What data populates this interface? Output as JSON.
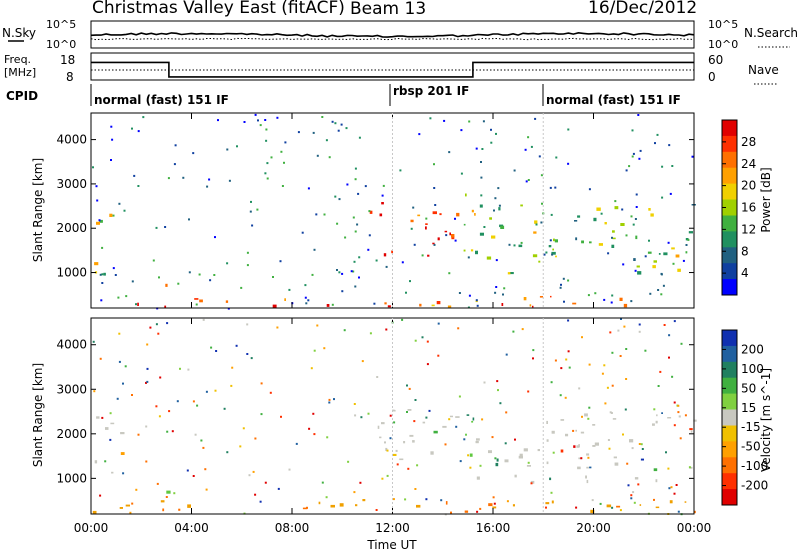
{
  "header": {
    "title": "Christmas Valley East (fitACF)",
    "beam": "Beam 13",
    "date": "16/Dec/2012"
  },
  "noise_panel": {
    "left_label": "N.Sky",
    "right_label": "N.Search",
    "left_ticks": [
      "10^5",
      "10^0"
    ],
    "right_ticks": [
      "10^5",
      "10^0"
    ]
  },
  "freq_panel": {
    "left_label_1": "Freq.",
    "left_label_2": "[MHz]",
    "right_label": "Nave",
    "left_ticks": [
      "18",
      "8"
    ],
    "right_ticks": [
      "60",
      "0"
    ],
    "freq_steps": [
      {
        "start_h": 0.0,
        "end_h": 3.1,
        "mhz": 15.2
      },
      {
        "start_h": 3.1,
        "end_h": 15.2,
        "mhz": 8.9
      },
      {
        "start_h": 15.2,
        "end_h": 24.0,
        "mhz": 15.2
      }
    ]
  },
  "cpid": {
    "label": "CPID",
    "modes": [
      {
        "start_h": 0.0,
        "text": "normal (fast) 151 IF"
      },
      {
        "start_h": 12.0,
        "text": "rbsp 201 IF"
      },
      {
        "start_h": 18.0,
        "text": "normal (fast) 151 IF"
      }
    ]
  },
  "chart_data": [
    {
      "type": "heatmap",
      "title": "",
      "ylabel": "Slant Range [km]",
      "xlabel": "",
      "xlim": [
        0,
        24
      ],
      "ylim": [
        200,
        4600
      ],
      "yticks": [
        "1000",
        "2000",
        "3000",
        "4000"
      ],
      "colorbar": {
        "label": "Power [dB]",
        "ticks": [
          "28",
          "24",
          "20",
          "16",
          "12",
          "8",
          "4"
        ],
        "colors": [
          "#e00000",
          "#ff3000",
          "#ff7000",
          "#ffa000",
          "#f0d000",
          "#a0d000",
          "#40b040",
          "#209060",
          "#206080",
          "#1040a0",
          "#0000ff"
        ]
      },
      "regions": [
        {
          "t0": 0.0,
          "t1": 1.0,
          "r0": 900,
          "r1": 2400,
          "level": 0.55
        },
        {
          "t0": 2.9,
          "t1": 3.2,
          "r0": 700,
          "r1": 1800,
          "level": 0.35
        },
        {
          "t0": 11.0,
          "t1": 14.6,
          "r0": 1300,
          "r1": 2600,
          "level": 0.15
        },
        {
          "t0": 14.5,
          "t1": 15.3,
          "r0": 1500,
          "r1": 2900,
          "level": 0.55
        },
        {
          "t0": 15.2,
          "t1": 24.0,
          "r0": 1000,
          "r1": 2600,
          "level": 0.6
        },
        {
          "t0": 0.0,
          "t1": 24.0,
          "r0": 250,
          "r1": 500,
          "level": 0.2
        }
      ]
    },
    {
      "type": "heatmap",
      "title": "",
      "ylabel": "Slant Range [km]",
      "xlabel": "Time UT",
      "xlim": [
        0,
        24
      ],
      "ylim": [
        200,
        4600
      ],
      "xticks": [
        "00:00",
        "04:00",
        "08:00",
        "12:00",
        "16:00",
        "20:00",
        "00:00"
      ],
      "yticks": [
        "1000",
        "2000",
        "3000",
        "4000"
      ],
      "colorbar": {
        "label": "Velocity [m s^-1]",
        "ticks": [
          "200",
          "100",
          "50",
          "15",
          "-15",
          "-50",
          "-100",
          "-200"
        ],
        "colors": [
          "#1030b0",
          "#2060a0",
          "#208060",
          "#40b040",
          "#80d040",
          "#c8c8c0",
          "#f0c000",
          "#ffa000",
          "#ff7000",
          "#ff3000",
          "#e00000"
        ]
      },
      "regions": [
        {
          "t0": 0.0,
          "t1": 1.2,
          "r0": 1000,
          "r1": 2400,
          "level": "ground"
        },
        {
          "t0": 2.9,
          "t1": 3.2,
          "r0": 700,
          "r1": 1800,
          "level": "green"
        },
        {
          "t0": 11.0,
          "t1": 14.6,
          "r0": 1400,
          "r1": 2600,
          "level": "ground"
        },
        {
          "t0": 14.5,
          "t1": 15.3,
          "r0": 1500,
          "r1": 2900,
          "level": "green"
        },
        {
          "t0": 15.2,
          "t1": 24.0,
          "r0": 900,
          "r1": 2500,
          "level": "ground"
        },
        {
          "t0": 0.0,
          "t1": 24.0,
          "r0": 250,
          "r1": 550,
          "level": "orange"
        }
      ]
    }
  ]
}
